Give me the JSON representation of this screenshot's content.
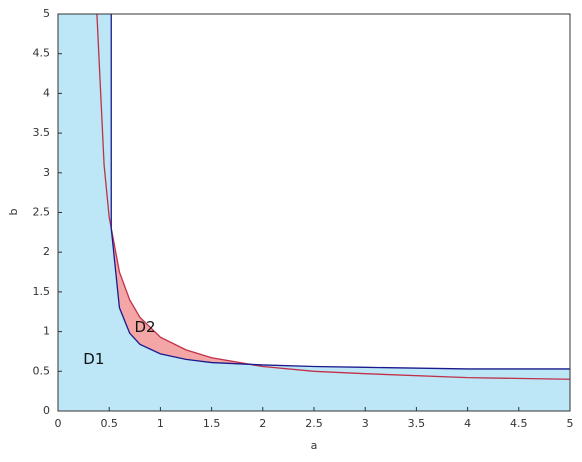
{
  "chart_data": {
    "type": "region",
    "xlabel": "a",
    "ylabel": "b",
    "xlim": [
      0,
      5
    ],
    "ylim": [
      0,
      5
    ],
    "xticks": [
      0,
      0.5,
      1,
      1.5,
      2,
      2.5,
      3,
      3.5,
      4,
      4.5,
      5
    ],
    "yticks": [
      0,
      0.5,
      1,
      1.5,
      2,
      2.5,
      3,
      3.5,
      4,
      4.5,
      5
    ],
    "series": [
      {
        "label": "D2",
        "color": "#f4a6a6",
        "line_color": "#c0304a",
        "x": [
          0.38,
          0.45,
          0.5,
          0.6,
          0.7,
          0.8,
          1,
          1.25,
          1.5,
          2,
          2.5,
          3,
          4,
          5
        ],
        "y": [
          5,
          3.1,
          2.44,
          1.75,
          1.4,
          1.18,
          0.93,
          0.77,
          0.67,
          0.56,
          0.5,
          0.47,
          0.42,
          0.4
        ]
      },
      {
        "label": "D1",
        "color": "#bde6f7",
        "line_color": "#1a1a8c",
        "x": [
          0.52,
          0.52,
          0.6,
          0.7,
          0.8,
          1,
          1.25,
          1.5,
          2,
          2.5,
          3,
          4,
          5
        ],
        "y": [
          5,
          2.3,
          1.3,
          0.98,
          0.84,
          0.72,
          0.65,
          0.61,
          0.58,
          0.56,
          0.55,
          0.53,
          0.53
        ]
      }
    ]
  }
}
